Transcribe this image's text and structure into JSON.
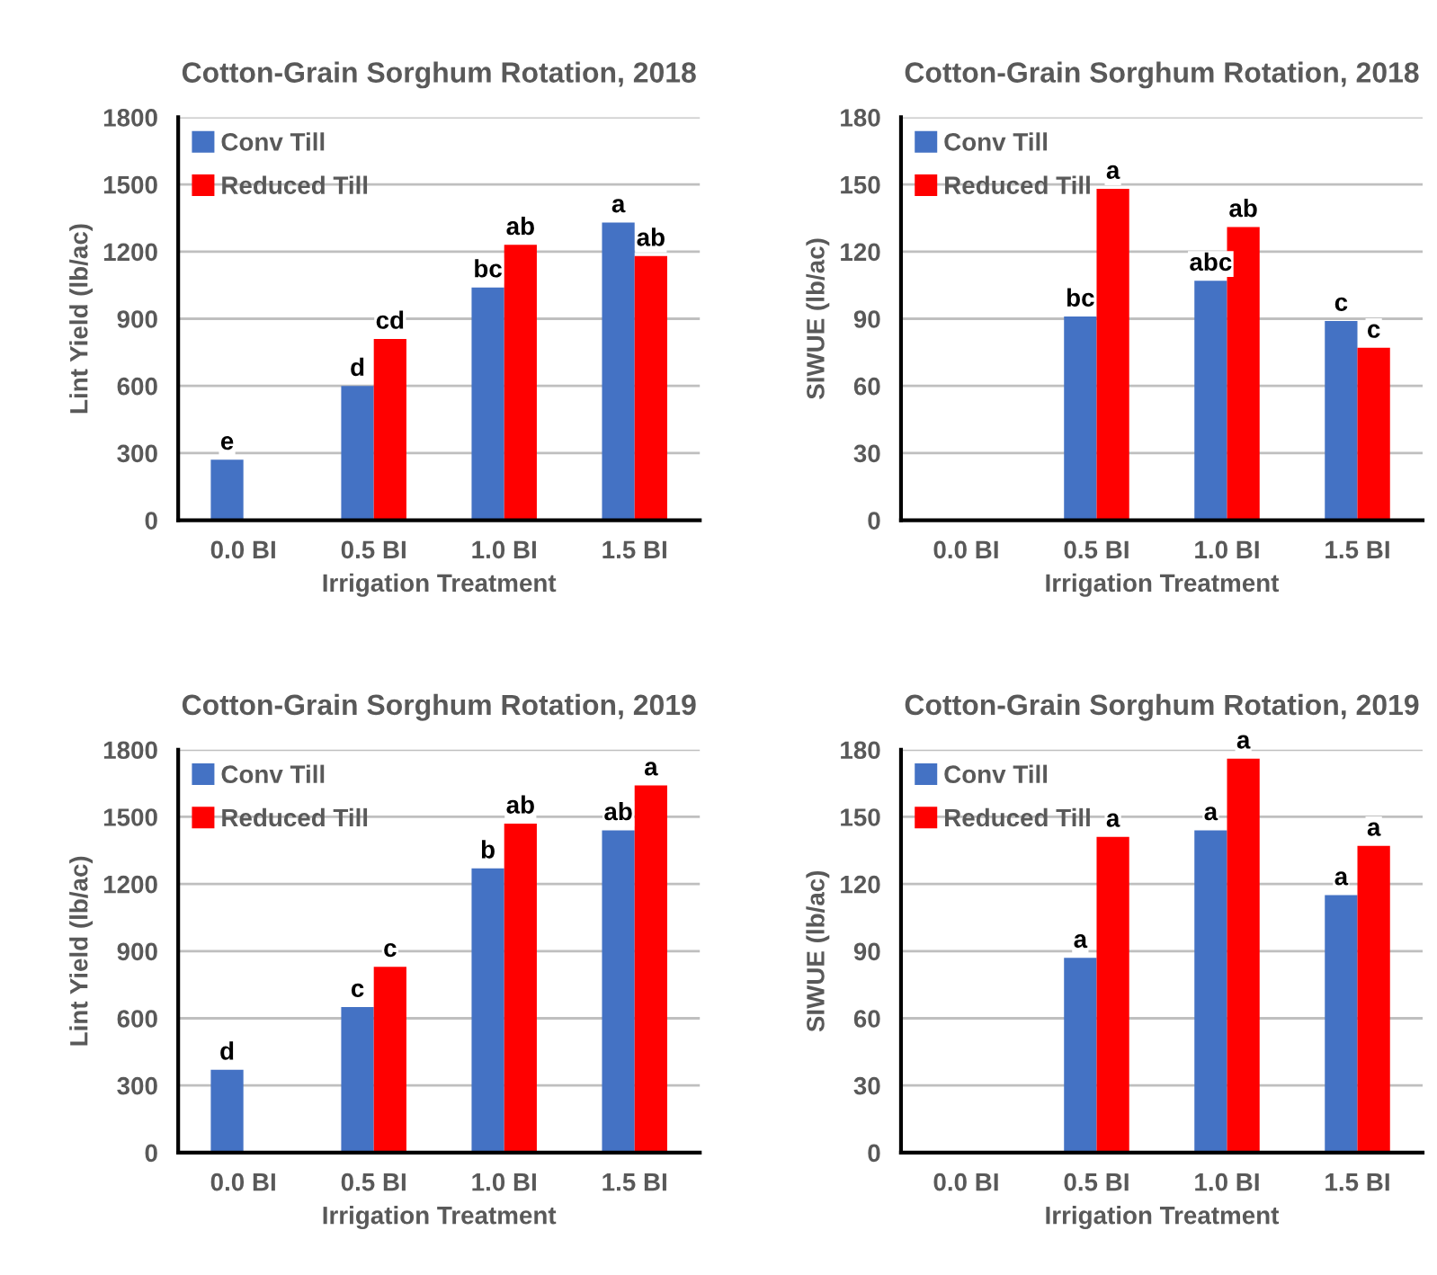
{
  "chart_data": [
    {
      "type": "bar",
      "title": "Cotton-Grain Sorghum Rotation, 2018",
      "xlabel": "Irrigation Treatment",
      "ylabel": "Lint Yield (lb/ac)",
      "categories": [
        "0.0 BI",
        "0.5 BI",
        "1.0 BI",
        "1.5 BI"
      ],
      "ylim": [
        0,
        1800
      ],
      "yticks": [
        0,
        300,
        600,
        900,
        1200,
        1500,
        1800
      ],
      "grid": "y",
      "legend": "top left",
      "series": [
        {
          "name": "Conv Till",
          "color": "#4472c4",
          "values": [
            270,
            600,
            1040,
            1330
          ],
          "value_labels": [
            "e",
            "d",
            "bc",
            "a"
          ]
        },
        {
          "name": "Reduced Till",
          "color": "#ff0000",
          "values": [
            null,
            810,
            1230,
            1180
          ],
          "value_labels": [
            null,
            "cd",
            "ab",
            "ab"
          ]
        }
      ]
    },
    {
      "type": "bar",
      "title": "Cotton-Grain Sorghum Rotation, 2018",
      "xlabel": "Irrigation Treatment",
      "ylabel": "SIWUE (lb/ac)",
      "categories": [
        "0.0 BI",
        "0.5 BI",
        "1.0 BI",
        "1.5 BI"
      ],
      "ylim": [
        0,
        180
      ],
      "yticks": [
        0,
        30,
        60,
        90,
        120,
        150,
        180
      ],
      "grid": "y",
      "legend": "top left",
      "series": [
        {
          "name": "Conv Till",
          "color": "#4472c4",
          "values": [
            null,
            91,
            107,
            89
          ],
          "value_labels": [
            null,
            "bc",
            "abc",
            "c"
          ]
        },
        {
          "name": "Reduced Till",
          "color": "#ff0000",
          "values": [
            null,
            148,
            131,
            77
          ],
          "value_labels": [
            null,
            "a",
            "ab",
            "c"
          ]
        }
      ]
    },
    {
      "type": "bar",
      "title": "Cotton-Grain Sorghum Rotation, 2019",
      "xlabel": "Irrigation Treatment",
      "ylabel": "Lint Yield (lb/ac)",
      "categories": [
        "0.0 BI",
        "0.5 BI",
        "1.0 BI",
        "1.5 BI"
      ],
      "ylim": [
        0,
        1800
      ],
      "yticks": [
        0,
        300,
        600,
        900,
        1200,
        1500,
        1800
      ],
      "grid": "y",
      "legend": "top left",
      "series": [
        {
          "name": "Conv Till",
          "color": "#4472c4",
          "values": [
            370,
            650,
            1270,
            1440
          ],
          "value_labels": [
            "d",
            "c",
            "b",
            "ab"
          ]
        },
        {
          "name": "Reduced Till",
          "color": "#ff0000",
          "values": [
            null,
            830,
            1470,
            1640
          ],
          "value_labels": [
            null,
            "c",
            "ab",
            "a"
          ]
        }
      ]
    },
    {
      "type": "bar",
      "title": "Cotton-Grain Sorghum Rotation, 2019",
      "xlabel": "Irrigation Treatment",
      "ylabel": "SIWUE (lb/ac)",
      "categories": [
        "0.0 BI",
        "0.5 BI",
        "1.0 BI",
        "1.5 BI"
      ],
      "ylim": [
        0,
        180
      ],
      "yticks": [
        0,
        30,
        60,
        90,
        120,
        150,
        180
      ],
      "grid": "y",
      "legend": "top left",
      "series": [
        {
          "name": "Conv Till",
          "color": "#4472c4",
          "values": [
            null,
            87,
            144,
            115
          ],
          "value_labels": [
            null,
            "a",
            "a",
            "a"
          ]
        },
        {
          "name": "Reduced Till",
          "color": "#ff0000",
          "values": [
            null,
            141,
            176,
            137
          ],
          "value_labels": [
            null,
            "a",
            "a",
            "a"
          ]
        }
      ]
    }
  ]
}
